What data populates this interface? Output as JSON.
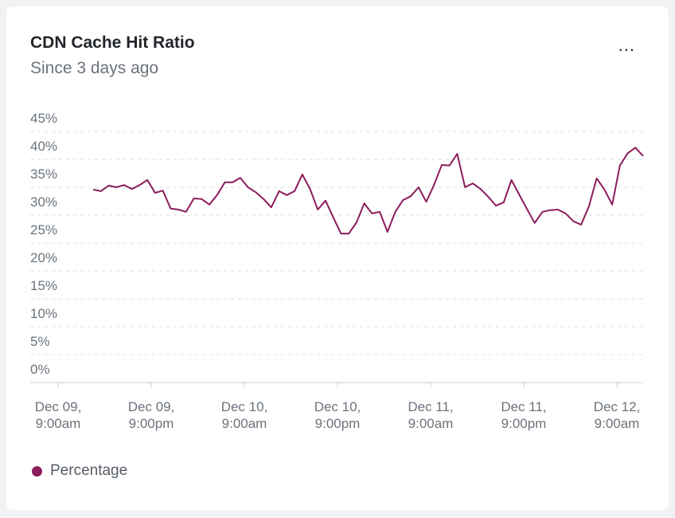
{
  "card": {
    "title": "CDN Cache Hit Ratio",
    "subtitle": "Since 3 days ago",
    "menu_label": "..."
  },
  "colors": {
    "series": "#8c1c5c",
    "grid": "#dcdfe2",
    "axis_text": "#6b737c"
  },
  "chart_data": {
    "type": "line",
    "title": "CDN Cache Hit Ratio",
    "subtitle": "Since 3 days ago",
    "y_ticks": [
      "0%",
      "5%",
      "10%",
      "15%",
      "20%",
      "25%",
      "30%",
      "35%",
      "40%",
      "45%"
    ],
    "ylim": [
      0,
      45
    ],
    "x_ticks": [
      [
        "Dec 09,",
        "9:00am"
      ],
      [
        "Dec 09,",
        "9:00pm"
      ],
      [
        "Dec 10,",
        "9:00am"
      ],
      [
        "Dec 10,",
        "9:00pm"
      ],
      [
        "Dec 11,",
        "9:00am"
      ],
      [
        "Dec 11,",
        "9:00pm"
      ],
      [
        "Dec 12,",
        "9:00am"
      ]
    ],
    "grid": true,
    "legend_position": "bottom-left",
    "series": [
      {
        "name": "Percentage",
        "values": [
          34.6,
          34.3,
          35.3,
          35,
          35.4,
          34.7,
          35.4,
          36.3,
          34,
          34.4,
          31.2,
          31,
          30.6,
          33,
          32.9,
          31.9,
          33.6,
          35.9,
          35.9,
          36.7,
          35,
          34.1,
          32.9,
          31.4,
          34.3,
          33.6,
          34.3,
          37.3,
          34.7,
          31,
          32.6,
          29.6,
          26.7,
          26.7,
          28.7,
          32.1,
          30.3,
          30.6,
          27,
          30.6,
          32.7,
          33.4,
          35,
          32.4,
          35.4,
          39,
          38.9,
          41,
          35,
          35.7,
          34.7,
          33.3,
          31.7,
          32.3,
          36.3,
          33.7,
          31.1,
          28.6,
          30.6,
          30.9,
          31,
          30.3,
          28.9,
          28.3,
          31.6,
          36.6,
          34.6,
          31.9,
          38.9,
          41.1,
          42.1,
          40.6
        ]
      }
    ]
  }
}
